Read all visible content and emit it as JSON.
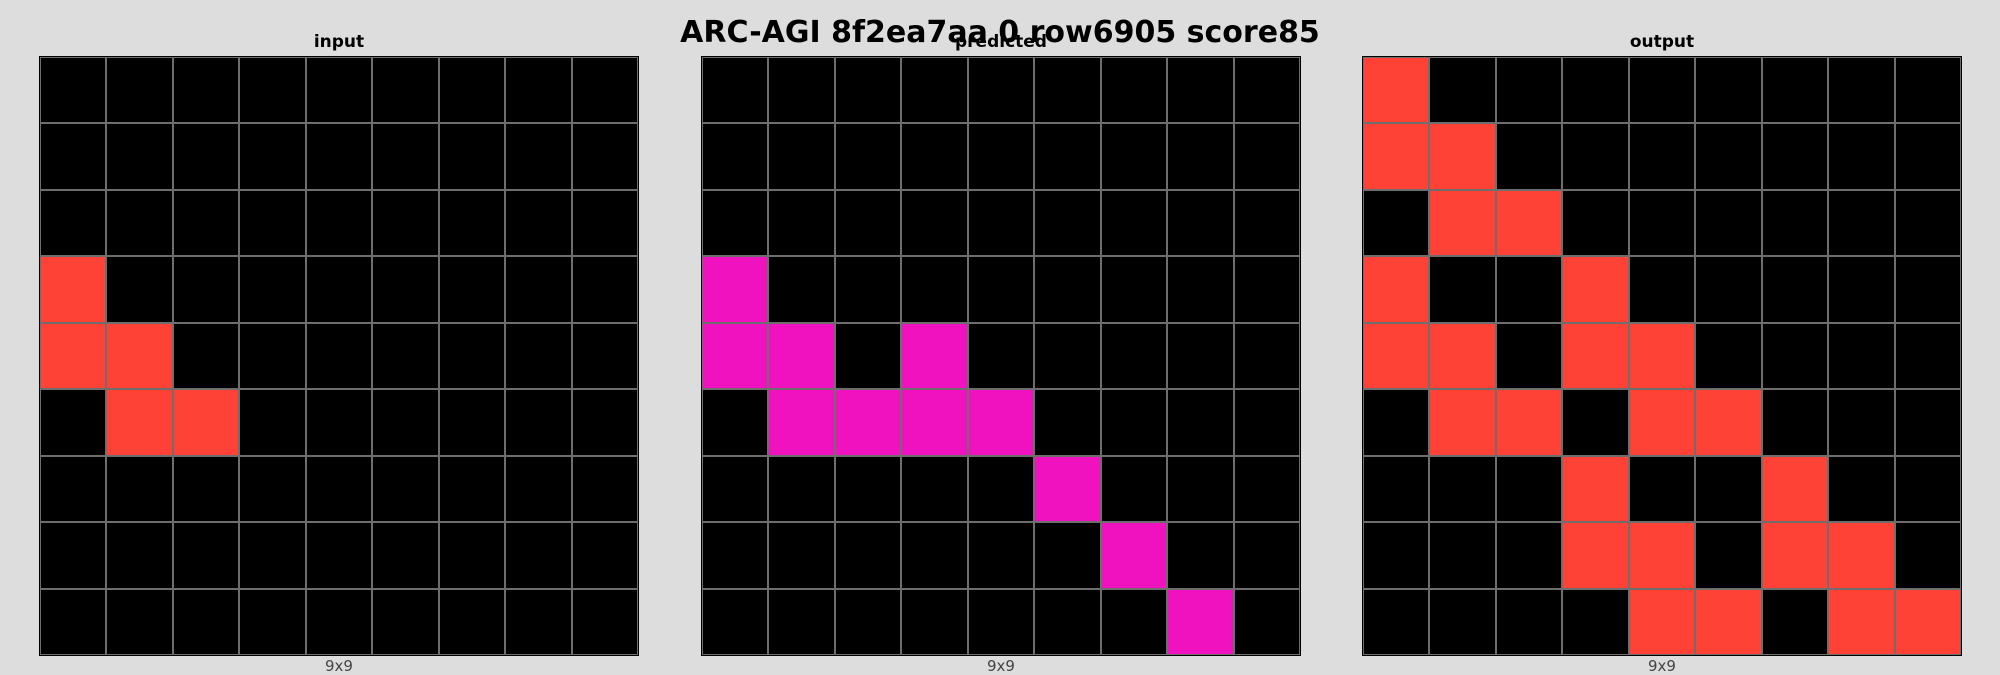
{
  "title": "ARC-AGI 8f2ea7aa 0 row6905 score85",
  "palette": {
    "0": "#000000",
    "2": "#ff4136",
    "6": "#f012be"
  },
  "panels": [
    {
      "label": "input",
      "size": "9x9",
      "grid": [
        [
          0,
          0,
          0,
          0,
          0,
          0,
          0,
          0,
          0
        ],
        [
          0,
          0,
          0,
          0,
          0,
          0,
          0,
          0,
          0
        ],
        [
          0,
          0,
          0,
          0,
          0,
          0,
          0,
          0,
          0
        ],
        [
          2,
          0,
          0,
          0,
          0,
          0,
          0,
          0,
          0
        ],
        [
          2,
          2,
          0,
          0,
          0,
          0,
          0,
          0,
          0
        ],
        [
          0,
          2,
          2,
          0,
          0,
          0,
          0,
          0,
          0
        ],
        [
          0,
          0,
          0,
          0,
          0,
          0,
          0,
          0,
          0
        ],
        [
          0,
          0,
          0,
          0,
          0,
          0,
          0,
          0,
          0
        ],
        [
          0,
          0,
          0,
          0,
          0,
          0,
          0,
          0,
          0
        ]
      ]
    },
    {
      "label": "predicted",
      "size": "9x9",
      "grid": [
        [
          0,
          0,
          0,
          0,
          0,
          0,
          0,
          0,
          0
        ],
        [
          0,
          0,
          0,
          0,
          0,
          0,
          0,
          0,
          0
        ],
        [
          0,
          0,
          0,
          0,
          0,
          0,
          0,
          0,
          0
        ],
        [
          6,
          0,
          0,
          0,
          0,
          0,
          0,
          0,
          0
        ],
        [
          6,
          6,
          0,
          6,
          0,
          0,
          0,
          0,
          0
        ],
        [
          0,
          6,
          6,
          6,
          6,
          0,
          0,
          0,
          0
        ],
        [
          0,
          0,
          0,
          0,
          0,
          6,
          0,
          0,
          0
        ],
        [
          0,
          0,
          0,
          0,
          0,
          0,
          6,
          0,
          0
        ],
        [
          0,
          0,
          0,
          0,
          0,
          0,
          0,
          6,
          0
        ]
      ]
    },
    {
      "label": "output",
      "size": "9x9",
      "grid": [
        [
          2,
          0,
          0,
          0,
          0,
          0,
          0,
          0,
          0
        ],
        [
          2,
          2,
          0,
          0,
          0,
          0,
          0,
          0,
          0
        ],
        [
          0,
          2,
          2,
          0,
          0,
          0,
          0,
          0,
          0
        ],
        [
          2,
          0,
          0,
          2,
          0,
          0,
          0,
          0,
          0
        ],
        [
          2,
          2,
          0,
          2,
          2,
          0,
          0,
          0,
          0
        ],
        [
          0,
          2,
          2,
          0,
          2,
          2,
          0,
          0,
          0
        ],
        [
          0,
          0,
          0,
          2,
          0,
          0,
          2,
          0,
          0
        ],
        [
          0,
          0,
          0,
          2,
          2,
          0,
          2,
          2,
          0
        ],
        [
          0,
          0,
          0,
          0,
          2,
          2,
          0,
          2,
          2
        ]
      ]
    }
  ]
}
